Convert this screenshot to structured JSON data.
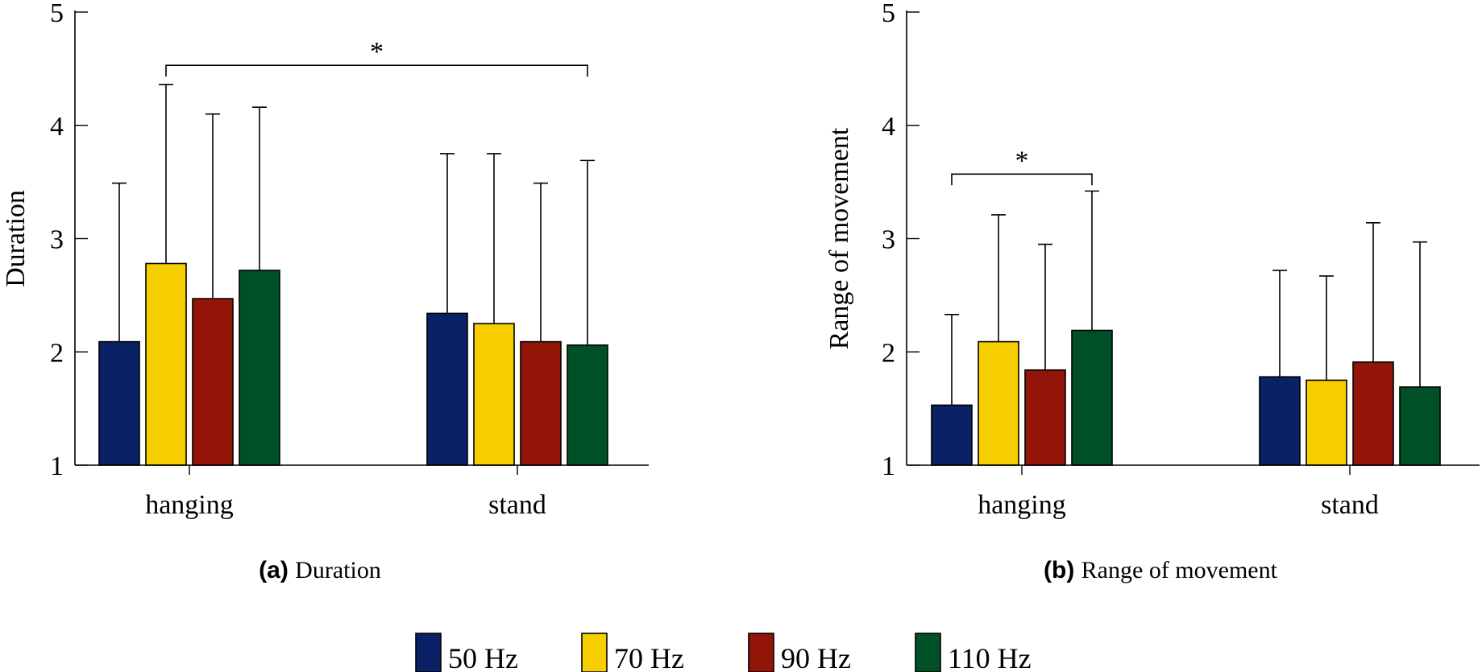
{
  "colors": {
    "50 Hz": "#0b2166",
    "70 Hz": "#f7cf00",
    "90 Hz": "#931508",
    "110 Hz": "#005027"
  },
  "legend": {
    "items": [
      "50 Hz",
      "70 Hz",
      "90 Hz",
      "110 Hz"
    ]
  },
  "chart_data": [
    {
      "type": "bar",
      "caption_prefix": "(a)",
      "caption": "Duration",
      "ylabel": "Duration",
      "xlabel": "",
      "ylim": [
        1,
        5
      ],
      "yticks": [
        1,
        2,
        3,
        4,
        5
      ],
      "categories": [
        "hanging",
        "stand"
      ],
      "series": [
        {
          "name": "50 Hz",
          "values": [
            2.09,
            2.34
          ],
          "error_upper": [
            3.49,
            3.75
          ]
        },
        {
          "name": "70 Hz",
          "values": [
            2.78,
            2.25
          ],
          "error_upper": [
            4.36,
            3.75
          ]
        },
        {
          "name": "90 Hz",
          "values": [
            2.47,
            2.09
          ],
          "error_upper": [
            4.1,
            3.49
          ]
        },
        {
          "name": "110 Hz",
          "values": [
            2.72,
            2.06
          ],
          "error_upper": [
            4.16,
            3.69
          ]
        }
      ],
      "significance": [
        {
          "label": "*",
          "from": {
            "category": "hanging",
            "series": "70 Hz"
          },
          "to": {
            "category": "stand",
            "series": "110 Hz"
          },
          "y": 4.53
        }
      ]
    },
    {
      "type": "bar",
      "caption_prefix": "(b)",
      "caption": "Range of movement",
      "ylabel": "Range of movement",
      "xlabel": "",
      "ylim": [
        1,
        5
      ],
      "yticks": [
        1,
        2,
        3,
        4,
        5
      ],
      "categories": [
        "hanging",
        "stand"
      ],
      "series": [
        {
          "name": "50 Hz",
          "values": [
            1.53,
            1.78
          ],
          "error_upper": [
            2.33,
            2.72
          ]
        },
        {
          "name": "70 Hz",
          "values": [
            2.09,
            1.75
          ],
          "error_upper": [
            3.21,
            2.67
          ]
        },
        {
          "name": "90 Hz",
          "values": [
            1.84,
            1.91
          ],
          "error_upper": [
            2.95,
            3.14
          ]
        },
        {
          "name": "110 Hz",
          "values": [
            2.19,
            1.69
          ],
          "error_upper": [
            3.42,
            2.97
          ]
        }
      ],
      "significance": [
        {
          "label": "*",
          "from": {
            "category": "hanging",
            "series": "50 Hz"
          },
          "to": {
            "category": "hanging",
            "series": "110 Hz"
          },
          "y": 3.57
        }
      ]
    }
  ]
}
